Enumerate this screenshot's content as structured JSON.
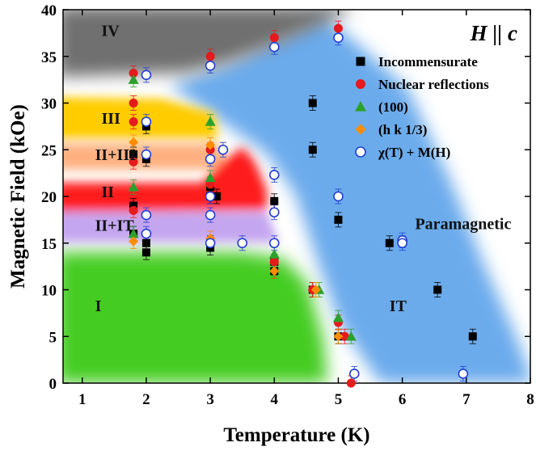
{
  "chart_data": {
    "type": "scatter",
    "title": "",
    "xlabel": "Temperature (K)",
    "ylabel": "Magnetic Field (kOe)",
    "xlim": [
      0.7,
      8
    ],
    "ylim": [
      0,
      40
    ],
    "xticks": [
      1,
      2,
      3,
      4,
      5,
      6,
      7,
      8
    ],
    "yticks": [
      0,
      5,
      10,
      15,
      20,
      25,
      30,
      35,
      40
    ],
    "grid": false,
    "legend_position": "top-right",
    "orientation_label": "H || c",
    "phase_labels": [
      {
        "text": "IV",
        "x": 1.3,
        "y": 37.2
      },
      {
        "text": "III",
        "x": 1.3,
        "y": 27.8
      },
      {
        "text": "II+III",
        "x": 1.2,
        "y": 23.9
      },
      {
        "text": "II",
        "x": 1.3,
        "y": 19.9
      },
      {
        "text": "II+IT",
        "x": 1.2,
        "y": 16.3
      },
      {
        "text": "I",
        "x": 1.2,
        "y": 7.7
      },
      {
        "text": "IT",
        "x": 5.8,
        "y": 7.7
      },
      {
        "text": "Paramagnetic",
        "x": 6.2,
        "y": 16.5
      }
    ],
    "series": [
      {
        "name": "Incommensurate",
        "marker": "square",
        "color": "#000000",
        "points": [
          {
            "x": 1.8,
            "y": 24.5
          },
          {
            "x": 1.8,
            "y": 19
          },
          {
            "x": 1.8,
            "y": 16
          },
          {
            "x": 2.0,
            "y": 27.5
          },
          {
            "x": 2.0,
            "y": 24
          },
          {
            "x": 2.0,
            "y": 15
          },
          {
            "x": 2.0,
            "y": 14
          },
          {
            "x": 3.0,
            "y": 21
          },
          {
            "x": 3.0,
            "y": 20
          },
          {
            "x": 3.0,
            "y": 15
          },
          {
            "x": 3.0,
            "y": 14.5
          },
          {
            "x": 3.1,
            "y": 20
          },
          {
            "x": 4.0,
            "y": 19.5
          },
          {
            "x": 4.0,
            "y": 13
          },
          {
            "x": 4.0,
            "y": 12
          },
          {
            "x": 4.6,
            "y": 30
          },
          {
            "x": 4.6,
            "y": 25
          },
          {
            "x": 4.6,
            "y": 10
          },
          {
            "x": 5.0,
            "y": 17.5
          },
          {
            "x": 5.0,
            "y": 5
          },
          {
            "x": 5.8,
            "y": 15
          },
          {
            "x": 6.55,
            "y": 10
          },
          {
            "x": 7.1,
            "y": 5
          }
        ]
      },
      {
        "name": "Nuclear reflections",
        "marker": "circle-filled",
        "color": "#e41a1c",
        "points": [
          {
            "x": 1.8,
            "y": 33.2
          },
          {
            "x": 1.8,
            "y": 30
          },
          {
            "x": 1.8,
            "y": 28
          },
          {
            "x": 1.8,
            "y": 23.7
          },
          {
            "x": 1.8,
            "y": 18.5
          },
          {
            "x": 3.0,
            "y": 35
          },
          {
            "x": 3.0,
            "y": 25
          },
          {
            "x": 3.0,
            "y": 21.3
          },
          {
            "x": 4.0,
            "y": 37
          },
          {
            "x": 4.0,
            "y": 13
          },
          {
            "x": 4.6,
            "y": 10
          },
          {
            "x": 5.0,
            "y": 38
          },
          {
            "x": 5.0,
            "y": 6.5
          },
          {
            "x": 5.1,
            "y": 5
          },
          {
            "x": 5.2,
            "y": 0
          }
        ]
      },
      {
        "name": "(100)",
        "marker": "triangle",
        "color": "#2ca02c",
        "points": [
          {
            "x": 1.8,
            "y": 32.5
          },
          {
            "x": 1.8,
            "y": 21
          },
          {
            "x": 1.8,
            "y": 16
          },
          {
            "x": 3.0,
            "y": 28
          },
          {
            "x": 3.0,
            "y": 22
          },
          {
            "x": 4.0,
            "y": 13.8
          },
          {
            "x": 4.7,
            "y": 10
          },
          {
            "x": 5.0,
            "y": 7
          },
          {
            "x": 5.2,
            "y": 5
          }
        ]
      },
      {
        "name": "(h k 1/3)",
        "marker": "diamond",
        "color": "#ff8c00",
        "points": [
          {
            "x": 1.8,
            "y": 25.8
          },
          {
            "x": 1.8,
            "y": 15.2
          },
          {
            "x": 3.0,
            "y": 25.5
          },
          {
            "x": 3.0,
            "y": 15.5
          },
          {
            "x": 4.0,
            "y": 12
          },
          {
            "x": 4.65,
            "y": 10
          },
          {
            "x": 5.0,
            "y": 5
          }
        ]
      },
      {
        "name": "χ(T) + M(H)",
        "marker": "circle-open",
        "color": "#1f3fd6",
        "points": [
          {
            "x": 2.0,
            "y": 33
          },
          {
            "x": 2.0,
            "y": 28
          },
          {
            "x": 2.0,
            "y": 24.5
          },
          {
            "x": 2.0,
            "y": 18
          },
          {
            "x": 2.0,
            "y": 16
          },
          {
            "x": 3.0,
            "y": 34
          },
          {
            "x": 3.0,
            "y": 24
          },
          {
            "x": 3.0,
            "y": 20
          },
          {
            "x": 3.0,
            "y": 18
          },
          {
            "x": 3.0,
            "y": 15
          },
          {
            "x": 3.2,
            "y": 25
          },
          {
            "x": 3.5,
            "y": 15
          },
          {
            "x": 4.0,
            "y": 36
          },
          {
            "x": 4.0,
            "y": 22.3
          },
          {
            "x": 4.0,
            "y": 18.3
          },
          {
            "x": 4.0,
            "y": 15
          },
          {
            "x": 5.0,
            "y": 37
          },
          {
            "x": 5.0,
            "y": 20
          },
          {
            "x": 6.0,
            "y": 15.3
          },
          {
            "x": 6.0,
            "y": 15
          },
          {
            "x": 5.25,
            "y": 1
          },
          {
            "x": 6.95,
            "y": 1
          }
        ]
      }
    ]
  }
}
